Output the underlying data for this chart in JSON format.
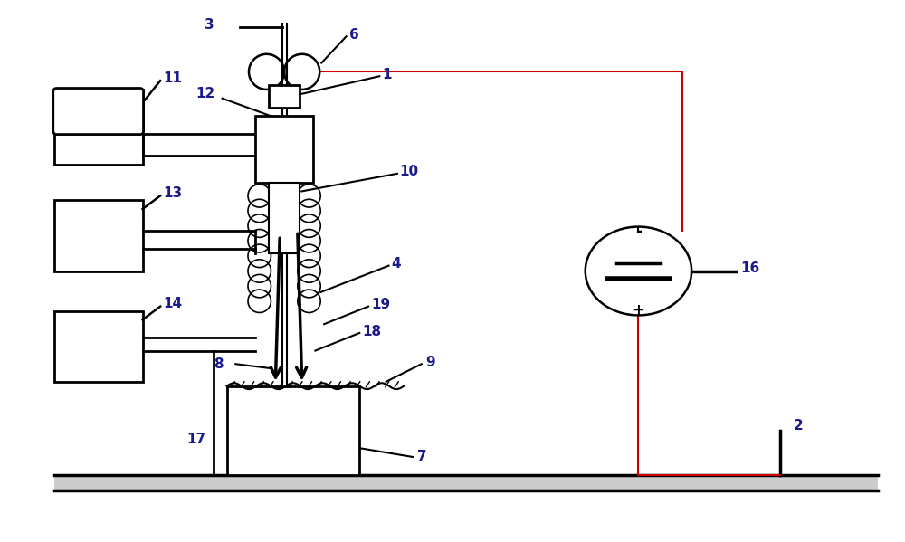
{
  "bg": "#ffffff",
  "lc": "#000000",
  "rc": "#cc0000",
  "tc": "#1a1a8c",
  "fw": 10.0,
  "fh": 5.99,
  "dpi": 100,
  "xlim": [
    0,
    100
  ],
  "ylim": [
    0,
    60
  ]
}
